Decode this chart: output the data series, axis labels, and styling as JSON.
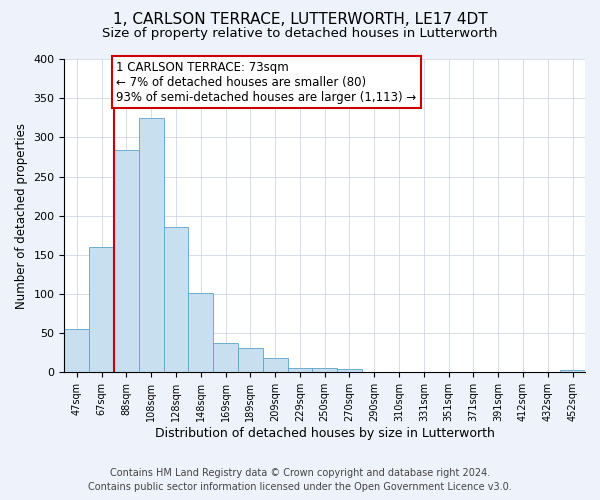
{
  "title": "1, CARLSON TERRACE, LUTTERWORTH, LE17 4DT",
  "subtitle": "Size of property relative to detached houses in Lutterworth",
  "xlabel": "Distribution of detached houses by size in Lutterworth",
  "ylabel": "Number of detached properties",
  "bar_labels": [
    "47sqm",
    "67sqm",
    "88sqm",
    "108sqm",
    "128sqm",
    "148sqm",
    "169sqm",
    "189sqm",
    "209sqm",
    "229sqm",
    "250sqm",
    "270sqm",
    "290sqm",
    "310sqm",
    "331sqm",
    "351sqm",
    "371sqm",
    "391sqm",
    "412sqm",
    "432sqm",
    "452sqm"
  ],
  "bar_values": [
    55,
    160,
    284,
    325,
    185,
    101,
    37,
    31,
    18,
    6,
    5,
    4,
    0,
    0,
    0,
    0,
    0,
    0,
    0,
    0,
    3
  ],
  "bar_color": "#c8dff0",
  "bar_edge_color": "#5ba3c9",
  "vline_x": 1.5,
  "vline_color": "#cc0000",
  "annotation_title": "1 CARLSON TERRACE: 73sqm",
  "annotation_line1": "← 7% of detached houses are smaller (80)",
  "annotation_line2": "93% of semi-detached houses are larger (1,113) →",
  "annotation_box_color": "#ffffff",
  "annotation_box_edge": "#cc0000",
  "ylim": [
    0,
    400
  ],
  "yticks": [
    0,
    50,
    100,
    150,
    200,
    250,
    300,
    350,
    400
  ],
  "footer_line1": "Contains HM Land Registry data © Crown copyright and database right 2024.",
  "footer_line2": "Contains public sector information licensed under the Open Government Licence v3.0.",
  "bg_color": "#eef2fa",
  "plot_bg_color": "#ffffff",
  "title_fontsize": 11,
  "subtitle_fontsize": 9.5,
  "xlabel_fontsize": 9,
  "ylabel_fontsize": 8.5,
  "footer_fontsize": 7
}
